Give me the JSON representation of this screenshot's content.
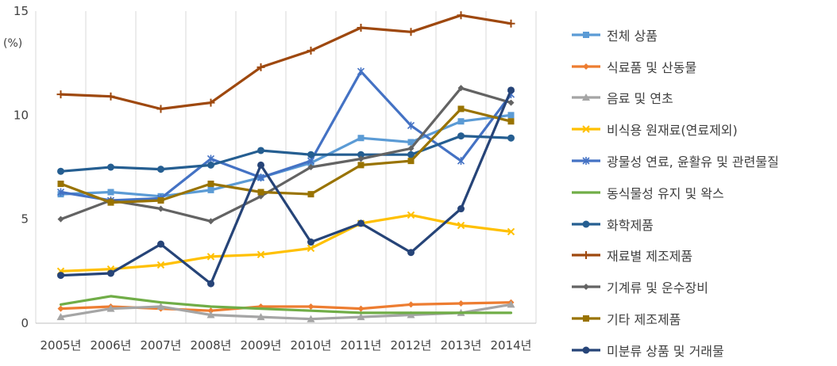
{
  "chart_data": {
    "type": "line",
    "ylabel": "(%)",
    "ylim": [
      0,
      15
    ],
    "yticks": [
      0,
      5,
      10,
      15
    ],
    "grid": "vertical",
    "legend_position": "right",
    "categories": [
      "2005년",
      "2006년",
      "2007년",
      "2008년",
      "2009년",
      "2010년",
      "2011년",
      "2012년",
      "2013년",
      "2014년"
    ],
    "series": [
      {
        "name": "전체 상품",
        "color": "#5B9BD5",
        "marker": "square",
        "values": [
          6.2,
          6.3,
          6.1,
          6.4,
          7.0,
          7.7,
          8.9,
          8.7,
          9.7,
          10.0
        ]
      },
      {
        "name": "식료품 및 산동물",
        "color": "#ED7D31",
        "marker": "diamond",
        "values": [
          0.7,
          0.8,
          0.7,
          0.6,
          0.8,
          0.8,
          0.7,
          0.9,
          0.95,
          1.0
        ]
      },
      {
        "name": "음료 및 연초",
        "color": "#A5A5A5",
        "marker": "triangle",
        "values": [
          0.3,
          0.7,
          0.8,
          0.4,
          0.3,
          0.2,
          0.3,
          0.4,
          0.5,
          0.9
        ]
      },
      {
        "name": "비식용 원재료(연료제외)",
        "color": "#FFC000",
        "marker": "x",
        "values": [
          2.5,
          2.6,
          2.8,
          3.2,
          3.3,
          3.6,
          4.8,
          5.2,
          4.7,
          4.4
        ]
      },
      {
        "name": "광물성 연료, 윤활유 및 관련물질",
        "color": "#4472C4",
        "marker": "star",
        "values": [
          6.3,
          5.9,
          6.0,
          7.9,
          7.0,
          7.8,
          12.1,
          9.5,
          7.8,
          11.0
        ]
      },
      {
        "name": "동식물성 유지 및 왁스",
        "color": "#70AD47",
        "marker": "none",
        "values": [
          0.9,
          1.3,
          1.0,
          0.8,
          0.7,
          0.6,
          0.5,
          0.5,
          0.5,
          0.5
        ]
      },
      {
        "name": "화학제품",
        "color": "#255E91",
        "marker": "circle",
        "values": [
          7.3,
          7.5,
          7.4,
          7.6,
          8.3,
          8.1,
          8.1,
          8.1,
          9.0,
          8.9
        ]
      },
      {
        "name": "재료별 제조제품",
        "color": "#9E480E",
        "marker": "plus",
        "values": [
          11.0,
          10.9,
          10.3,
          10.6,
          12.3,
          13.1,
          14.2,
          14.0,
          14.8,
          14.4
        ]
      },
      {
        "name": "기계류 및 운수장비",
        "color": "#636363",
        "marker": "diamond",
        "values": [
          5.0,
          5.9,
          5.5,
          4.9,
          6.1,
          7.5,
          7.9,
          8.4,
          11.3,
          10.6
        ]
      },
      {
        "name": "기타 제조제품",
        "color": "#997300",
        "marker": "square",
        "values": [
          6.7,
          5.8,
          5.9,
          6.7,
          6.3,
          6.2,
          7.6,
          7.8,
          10.3,
          9.7
        ]
      },
      {
        "name": "미분류 상품 및 거래물",
        "color": "#264478",
        "marker": "circle",
        "values": [
          2.3,
          2.4,
          3.8,
          1.9,
          7.6,
          3.9,
          4.8,
          3.4,
          5.5,
          11.2
        ]
      }
    ]
  }
}
